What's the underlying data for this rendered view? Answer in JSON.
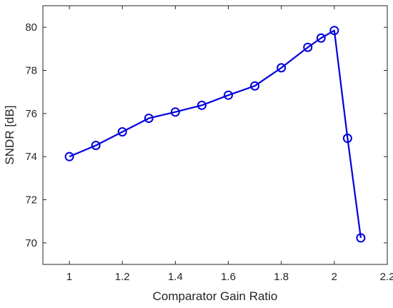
{
  "chart_data": {
    "type": "line",
    "xlabel": "Comparator Gain Ratio",
    "ylabel": "SNDR [dB]",
    "xlim": [
      0.9,
      2.2
    ],
    "ylim": [
      69,
      81
    ],
    "xticks": [
      "1",
      "1.2",
      "1.4",
      "1.6",
      "1.8",
      "2",
      "2.2"
    ],
    "xtick_values": [
      1,
      1.2,
      1.4,
      1.6,
      1.8,
      2,
      2.2
    ],
    "yticks": [
      "70",
      "72",
      "74",
      "76",
      "78",
      "80"
    ],
    "ytick_values": [
      70,
      72,
      74,
      76,
      78,
      80
    ],
    "grid": false,
    "marker": "circle",
    "series": [
      {
        "color": "#0000dd",
        "x": [
          1.0,
          1.1,
          1.2,
          1.3,
          1.4,
          1.5,
          1.6,
          1.7,
          1.8,
          1.9,
          1.95,
          2.0,
          2.05,
          2.1
        ],
        "y": [
          74.0,
          74.52,
          75.15,
          75.78,
          76.07,
          76.38,
          76.85,
          77.28,
          78.12,
          79.07,
          79.5,
          79.85,
          74.85,
          70.23
        ]
      }
    ]
  }
}
